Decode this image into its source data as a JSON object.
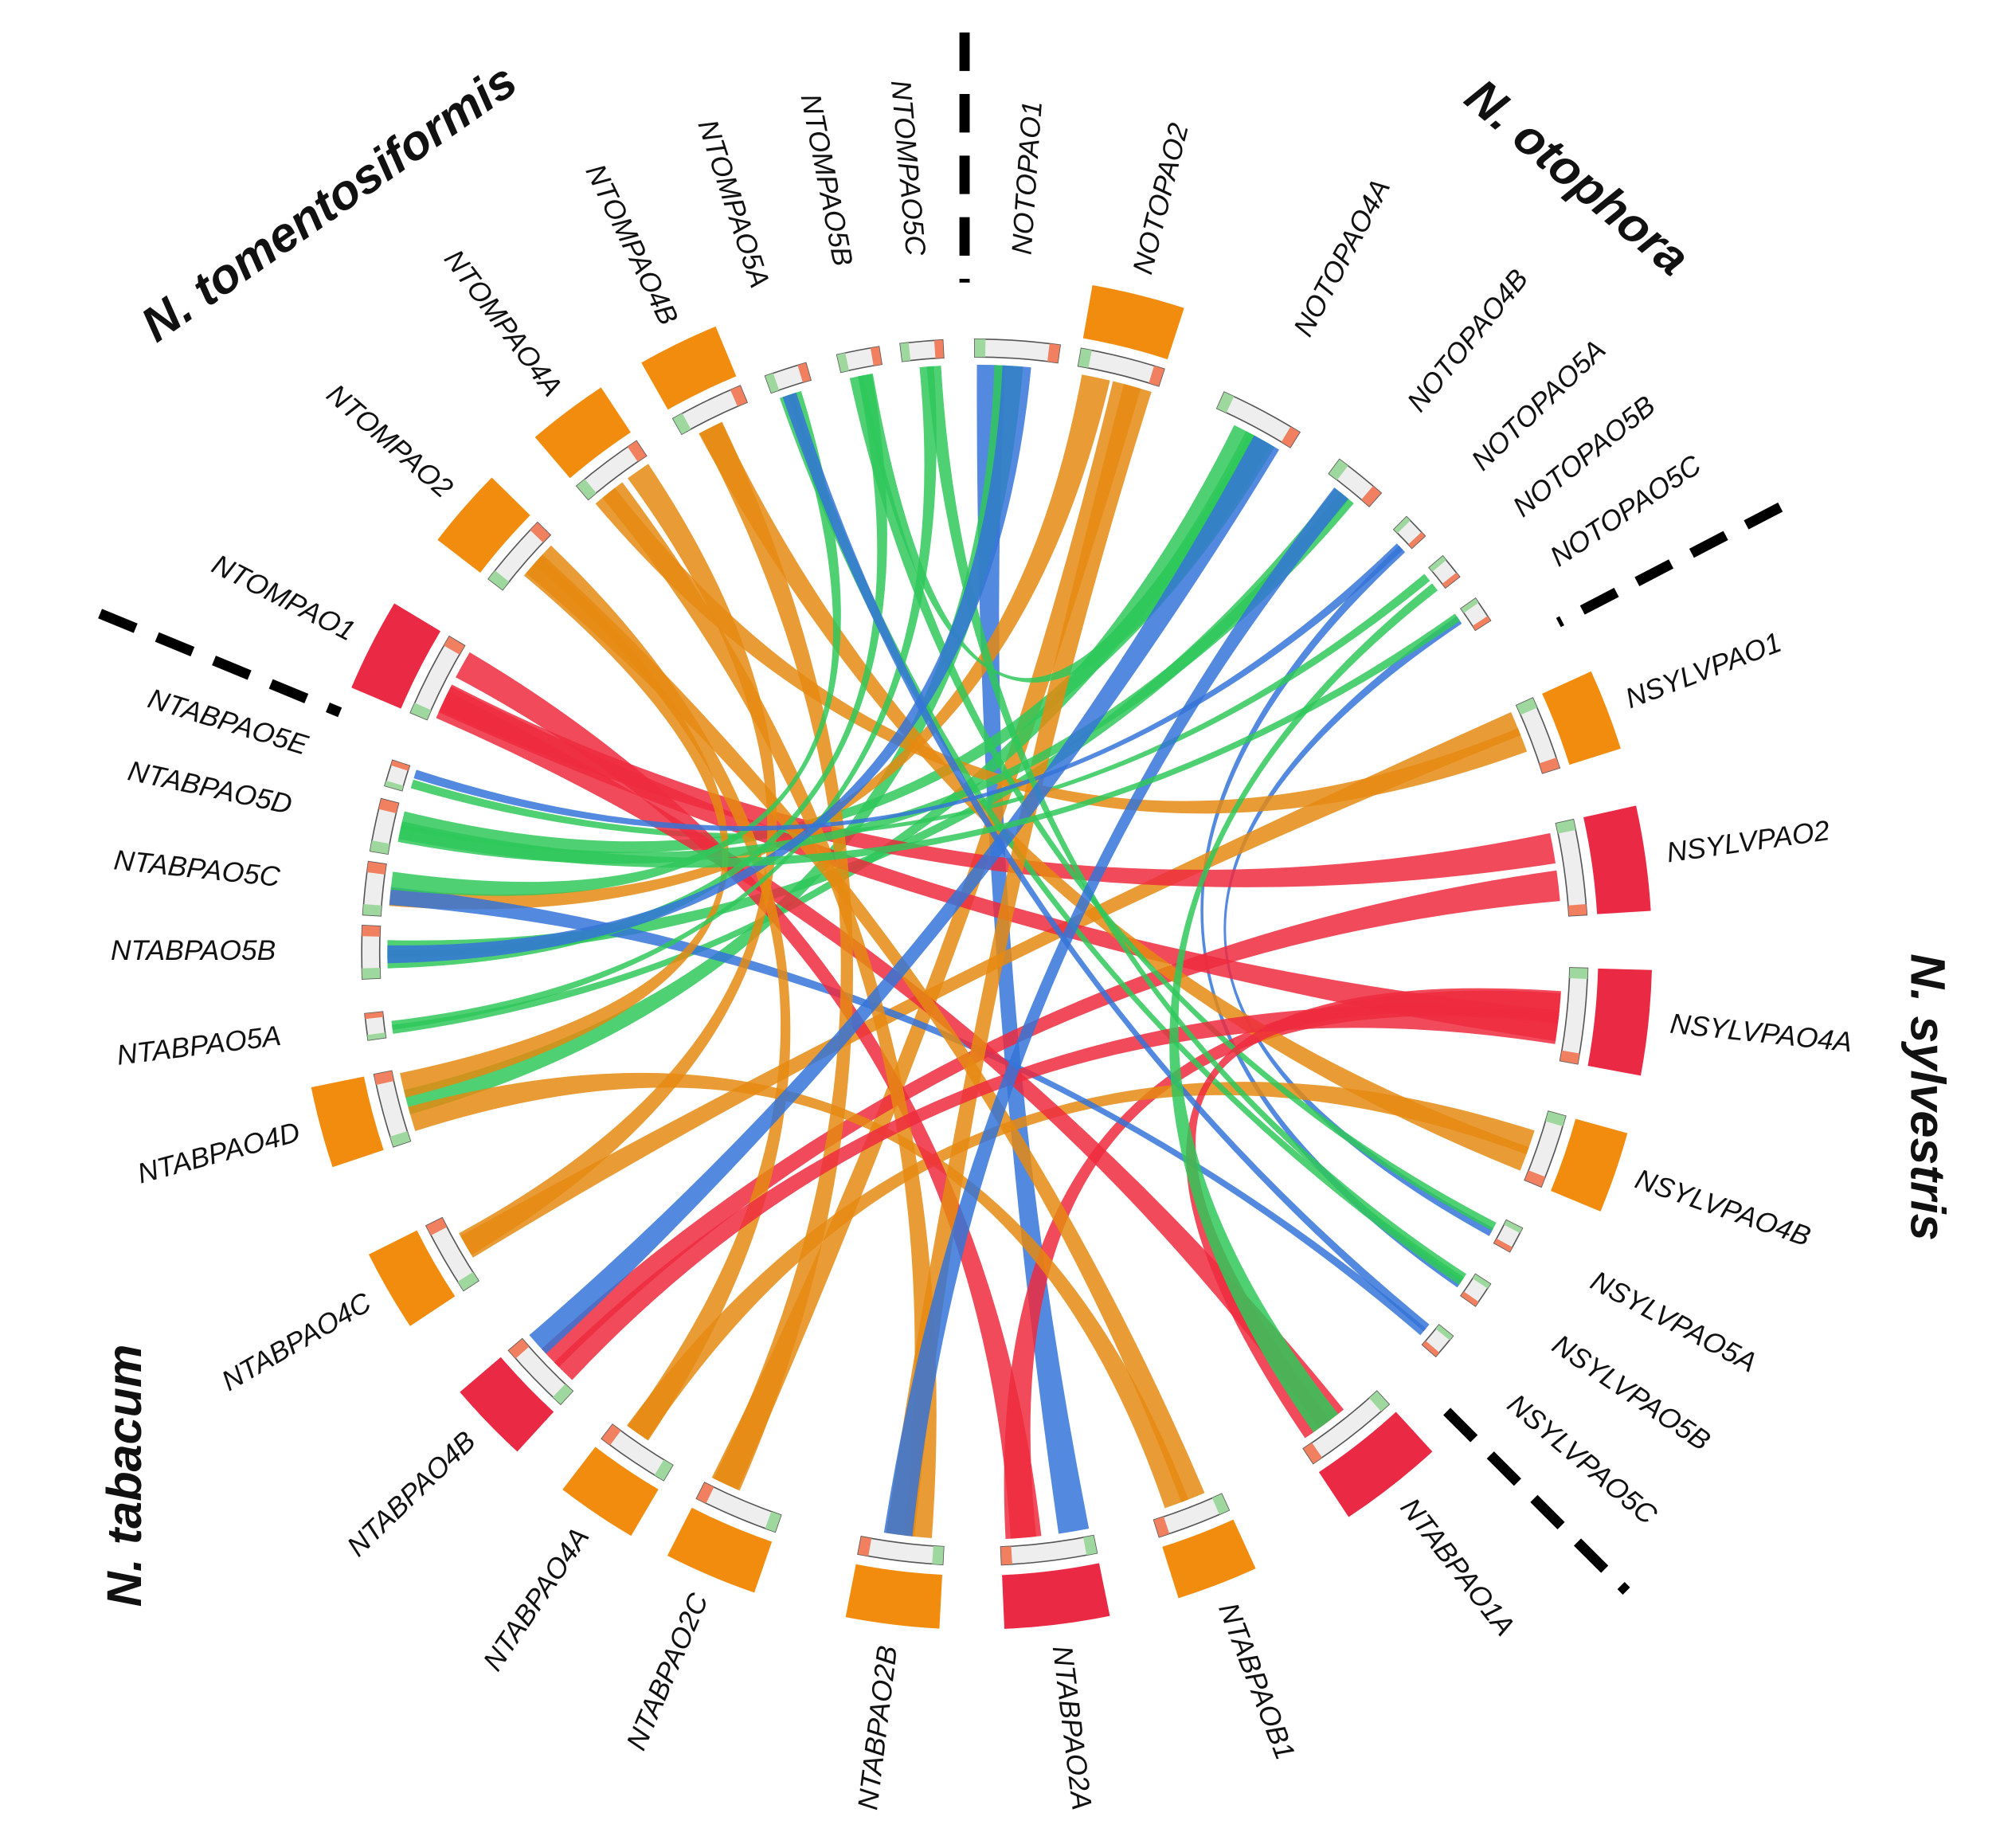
{
  "species": [
    "N. otophora",
    "N. sylvestris",
    "N. tabacum",
    "N. tomentosiformis"
  ],
  "genes": [
    "NOTOPAO1",
    "NOTOPAO2",
    "NOTOPAO4A",
    "NOTOPAO4B",
    "NOTOPAO5A",
    "NOTOPAO5B",
    "NOTOPAO5C",
    "NSYLVPAO1",
    "NSYLVPAO2",
    "NSYLVPAO4A",
    "NSYLVPAO4B",
    "NSYLVPAO5A",
    "NSYLVPAO5B",
    "NSYLVPAO5C",
    "NTABPAO1A",
    "NTABPAOB1",
    "NTABPAO2A",
    "NTABPAO2B",
    "NTABPAO2C",
    "NTABPAO4A",
    "NTABPAO4B",
    "NTABPAO4C",
    "NTABPAO4D",
    "NTABPAO5A",
    "NTABPAO5B",
    "NTABPAO5C",
    "NTABPAO5D",
    "NTABPAO5E",
    "NTOMPAO1",
    "NTOMPAO2",
    "NTOMPAO4A",
    "NTOMPAO4B",
    "NTOMPAO5A",
    "NTOMPAO5B",
    "NTOMPAO5C"
  ]
}
